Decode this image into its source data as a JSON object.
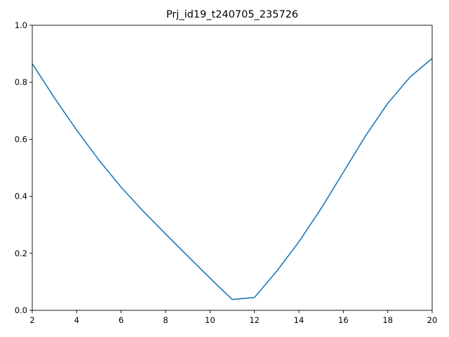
{
  "chart_data": {
    "type": "line",
    "title": "Prj_id19_t240705_235726",
    "xlabel": "",
    "ylabel": "",
    "xlim": [
      2,
      20
    ],
    "ylim": [
      0,
      1
    ],
    "grid": false,
    "x_ticks": [
      2,
      4,
      6,
      8,
      10,
      12,
      14,
      16,
      18,
      20
    ],
    "y_ticks": [
      0.0,
      0.2,
      0.4,
      0.6,
      0.8,
      1.0
    ],
    "x_tick_labels": [
      "2",
      "4",
      "6",
      "8",
      "10",
      "12",
      "14",
      "16",
      "18",
      "20"
    ],
    "y_tick_labels": [
      "0.0",
      "0.2",
      "0.4",
      "0.6",
      "0.8",
      "1.0"
    ],
    "series": [
      {
        "color": "#1f77b4",
        "x": [
          2,
          3,
          4,
          5,
          6,
          7,
          8,
          9,
          10,
          11,
          12,
          13,
          14,
          15,
          16,
          17,
          18,
          19,
          20
        ],
        "y": [
          0.865,
          0.745,
          0.632,
          0.527,
          0.432,
          0.347,
          0.268,
          0.19,
          0.113,
          0.038,
          0.045,
          0.137,
          0.24,
          0.357,
          0.484,
          0.612,
          0.726,
          0.818,
          0.884
        ]
      }
    ]
  }
}
